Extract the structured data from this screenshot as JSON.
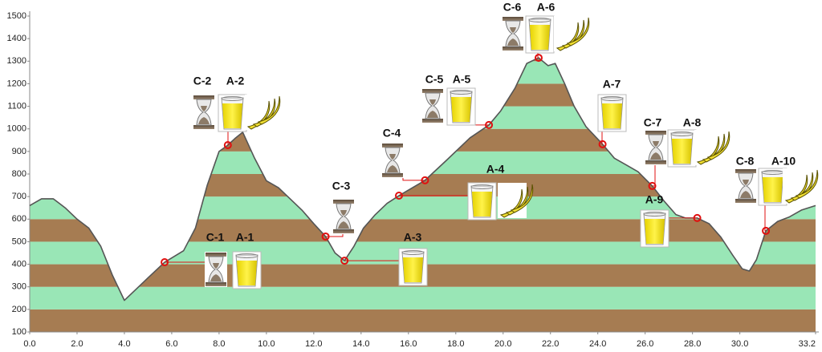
{
  "chart_data": {
    "type": "elevation-profile",
    "x": [
      0,
      0.5,
      1,
      1.5,
      2,
      2.5,
      3,
      3.5,
      4,
      4.5,
      5,
      5.7,
      6.5,
      7,
      7.5,
      8,
      8.37,
      8.7,
      9,
      9.5,
      10,
      10.5,
      11,
      11.5,
      12,
      12.5,
      12.9,
      13.3,
      13.7,
      14.1,
      14.6,
      15.1,
      15.6,
      16.7,
      17.6,
      18.6,
      19.4,
      19.9,
      20.5,
      21,
      21.5,
      21.9,
      22.2,
      22.6,
      23,
      23.5,
      24.2,
      24.7,
      25.2,
      25.7,
      26.3,
      26.8,
      27.3,
      27.7,
      28.2,
      28.7,
      29.2,
      29.7,
      30.1,
      30.4,
      30.7,
      31.1,
      31.6,
      32.1,
      32.6,
      33.2
    ],
    "values": [
      660,
      690,
      690,
      650,
      600,
      560,
      480,
      350,
      240,
      290,
      340,
      409,
      460,
      560,
      750,
      900,
      928,
      960,
      985,
      870,
      770,
      740,
      690,
      640,
      580,
      523,
      450,
      416,
      480,
      560,
      620,
      670,
      704,
      772,
      860,
      960,
      1017,
      1080,
      1180,
      1290,
      1315,
      1280,
      1290,
      1200,
      1100,
      1010,
      932,
      870,
      840,
      810,
      747,
      680,
      620,
      605,
      605,
      580,
      520,
      440,
      380,
      370,
      420,
      548,
      590,
      610,
      640,
      660
    ],
    "line_color": "#555555",
    "band_colors": [
      "#a67c52",
      "#99e6b6"
    ],
    "marker_color": "#e01010",
    "xlim": [
      0,
      33.2
    ],
    "ylim": [
      100,
      1500
    ],
    "xticks": [
      {
        "value": 0,
        "label": "0.0"
      },
      {
        "value": 2,
        "label": "2.0"
      },
      {
        "value": 4,
        "label": "4.0"
      },
      {
        "value": 6,
        "label": "6.0"
      },
      {
        "value": 8,
        "label": "8.0"
      },
      {
        "value": 10,
        "label": "10.0"
      },
      {
        "value": 12,
        "label": "12.0"
      },
      {
        "value": 14,
        "label": "14.0"
      },
      {
        "value": 16,
        "label": "16.0"
      },
      {
        "value": 18,
        "label": "18.0"
      },
      {
        "value": 20,
        "label": "20.0"
      },
      {
        "value": 22,
        "label": "22.0"
      },
      {
        "value": 24,
        "label": "24.0"
      },
      {
        "value": 26,
        "label": "26.0"
      },
      {
        "value": 28,
        "label": "28.0"
      },
      {
        "value": 30,
        "label": "30.0"
      },
      {
        "value": 33.2,
        "label": "33.2"
      }
    ],
    "yticks": [
      100,
      200,
      300,
      400,
      500,
      600,
      700,
      800,
      900,
      1000,
      1100,
      1200,
      1300,
      1400,
      1500
    ],
    "markers": [
      {
        "x": 5.7,
        "y": 409,
        "labels": [
          "C-1",
          "A-1"
        ]
      },
      {
        "x": 8.37,
        "y": 928,
        "labels": [
          "C-2",
          "A-2"
        ]
      },
      {
        "x": 12.5,
        "y": 523,
        "labels": [
          "C-3"
        ]
      },
      {
        "x": 13.3,
        "y": 416,
        "labels": [
          "A-3"
        ]
      },
      {
        "x": 15.6,
        "y": 704,
        "labels": [
          "A-4"
        ]
      },
      {
        "x": 16.7,
        "y": 772,
        "labels": [
          "C-4"
        ]
      },
      {
        "x": 19.4,
        "y": 1017,
        "labels": [
          "C-5",
          "A-5"
        ]
      },
      {
        "x": 21.5,
        "y": 1315,
        "labels": [
          "C-6",
          "A-6"
        ]
      },
      {
        "x": 24.2,
        "y": 932,
        "labels": [
          "A-7"
        ]
      },
      {
        "x": 26.3,
        "y": 747,
        "labels": [
          "C-7",
          "A-8"
        ]
      },
      {
        "x": 28.2,
        "y": 605,
        "labels": [
          "A-9"
        ]
      },
      {
        "x": 31.1,
        "y": 548,
        "labels": [
          "C-8",
          "A-10"
        ]
      }
    ]
  }
}
